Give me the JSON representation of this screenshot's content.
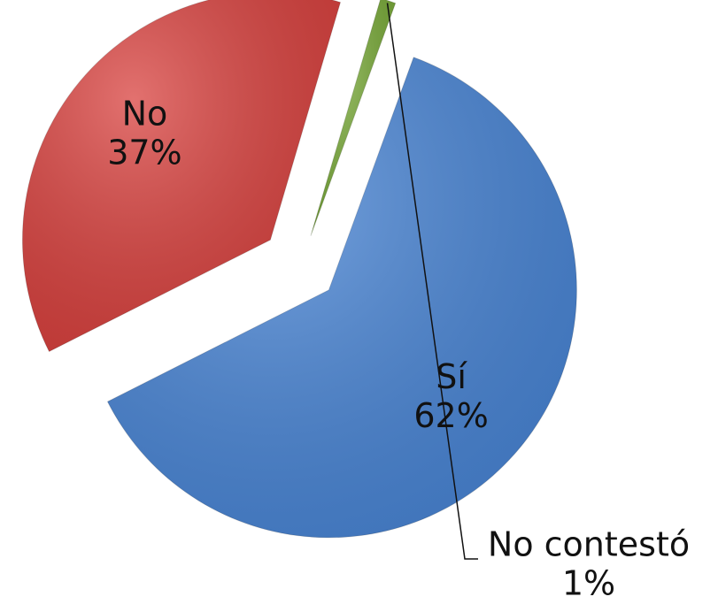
{
  "chart_data": {
    "type": "pie",
    "categories": [
      "Sí",
      "No",
      "No contestó"
    ],
    "values": [
      62,
      37,
      1
    ],
    "value_labels": [
      "62%",
      "37%",
      "1%"
    ],
    "colors": [
      "#4a86d6",
      "#d9423f",
      "#7aab3a"
    ]
  }
}
